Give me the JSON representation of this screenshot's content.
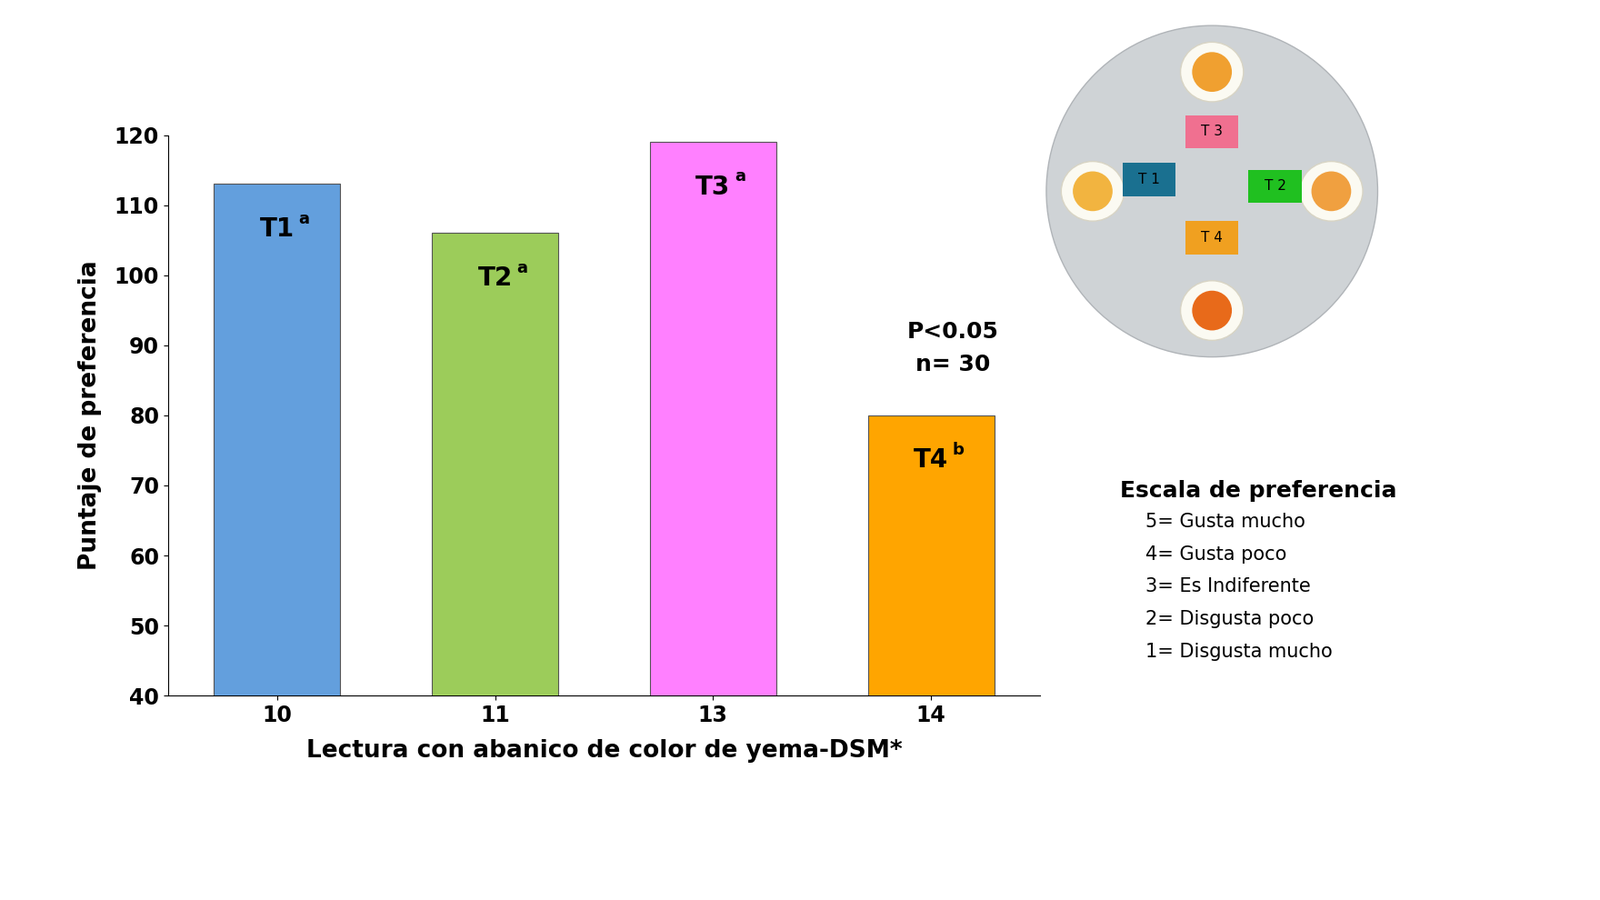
{
  "chart_data": {
    "type": "bar",
    "categories": [
      "10",
      "11",
      "13",
      "14"
    ],
    "values": [
      113,
      106,
      119,
      80
    ],
    "colors": [
      "#639fdd",
      "#9ccc5a",
      "#ff80ff",
      "#ffa500"
    ],
    "bar_labels": [
      "T1",
      "T2",
      "T3",
      "T4"
    ],
    "letters": [
      "a",
      "a",
      "a",
      "b"
    ],
    "x_label": "Lectura con abanico de color de yema-DSM*",
    "y_label": "Puntaje de preferencia",
    "ylim": [
      40,
      120
    ],
    "yticks": [
      40,
      50,
      60,
      70,
      80,
      90,
      100,
      110,
      120
    ],
    "grid": false,
    "annotations": [
      "P<0.05",
      "n= 30"
    ],
    "scale": {
      "title": "Escala de preferencia",
      "items": [
        "5= Gusta mucho",
        "4= Gusta poco",
        "3= Es Indiferente",
        "2= Disgusta poco",
        "1= Disgusta mucho"
      ]
    },
    "inset": {
      "labels": [
        "T 3",
        "T 1",
        "T 2",
        "T 4"
      ],
      "colors": [
        "#f07090",
        "#1a7090",
        "#20c020",
        "#f0a020"
      ]
    }
  }
}
